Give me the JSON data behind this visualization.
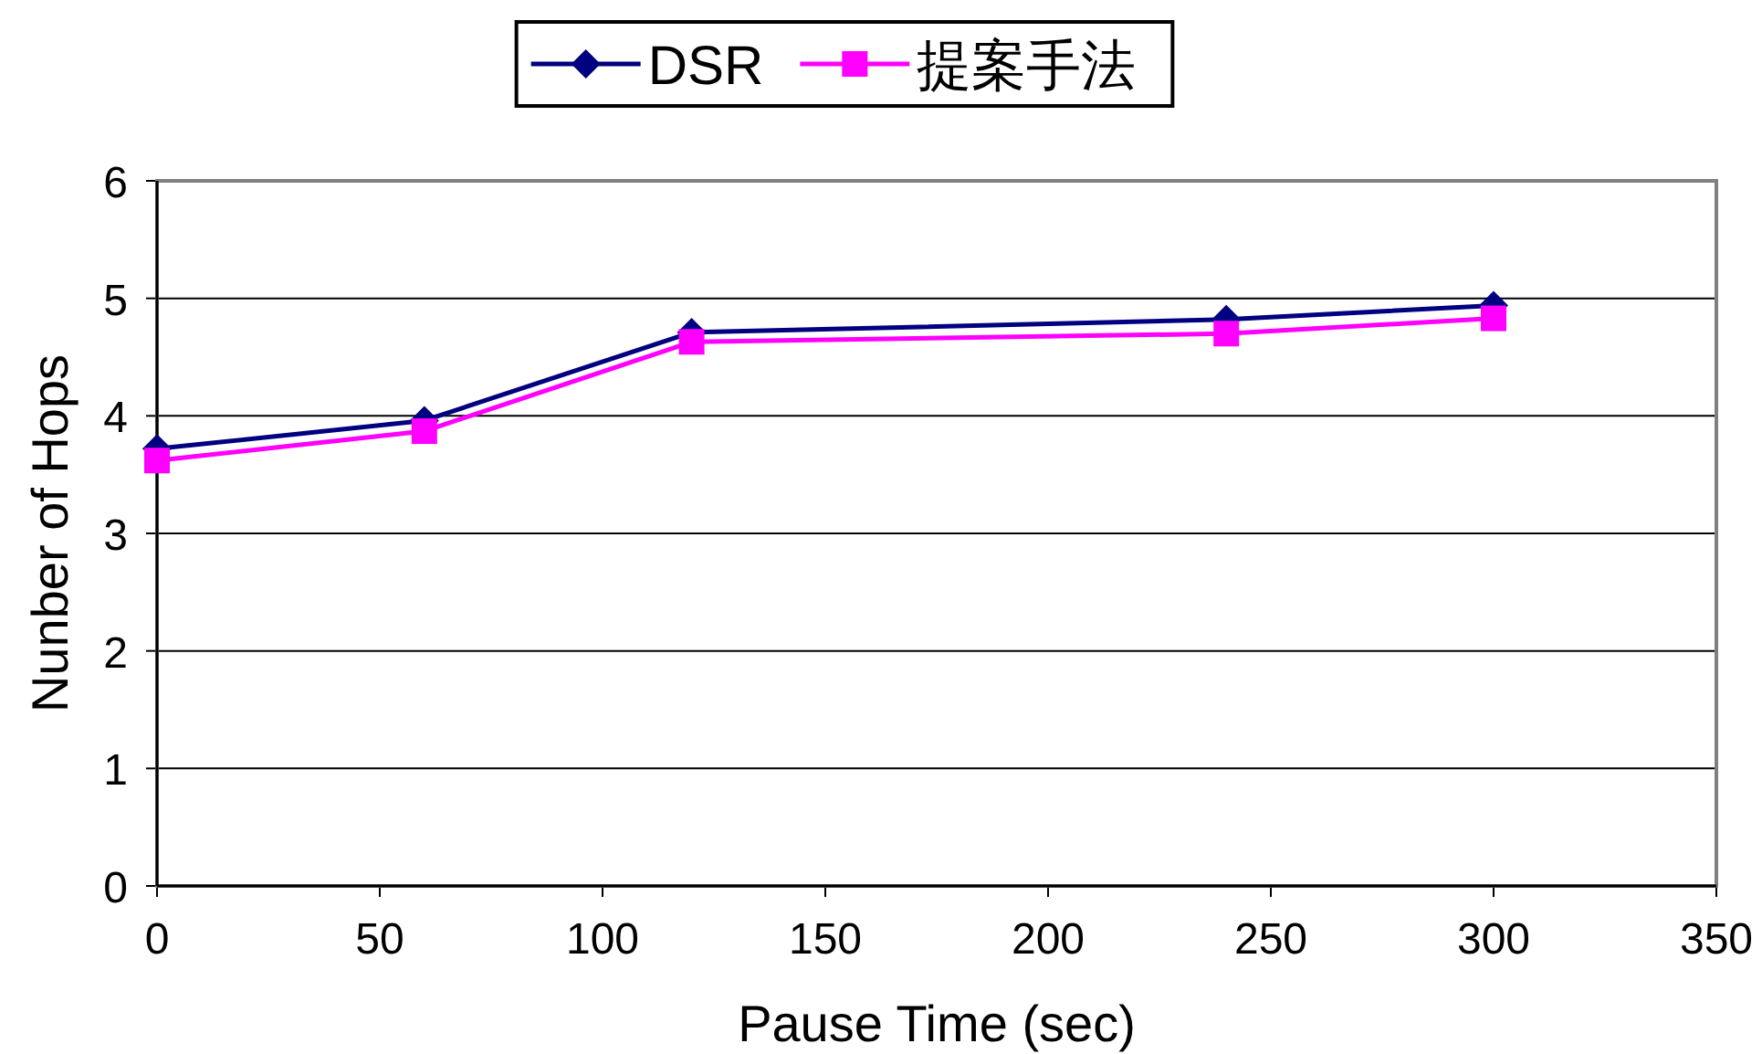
{
  "chart_data": {
    "type": "line",
    "xlabel": "Pause Time (sec)",
    "ylabel": "Nunber of Hops",
    "xlim": [
      0,
      350
    ],
    "xticks": [
      0,
      50,
      100,
      150,
      200,
      250,
      300,
      350
    ],
    "ylim": [
      0,
      6
    ],
    "yticks": [
      0,
      1,
      2,
      3,
      4,
      5,
      6
    ],
    "grid": "y",
    "legend": "top",
    "line_style": "solid",
    "series": [
      {
        "name": "DSR",
        "color": "#000080",
        "marker": "diamond",
        "x": [
          0,
          60,
          120,
          240,
          300
        ],
        "values": [
          3.72,
          3.96,
          4.71,
          4.82,
          4.94
        ]
      },
      {
        "name": "提案手法",
        "color": "#ff00ff",
        "marker": "square",
        "x": [
          0,
          60,
          120,
          240,
          300
        ],
        "values": [
          3.62,
          3.87,
          4.63,
          4.7,
          4.83
        ]
      }
    ]
  }
}
